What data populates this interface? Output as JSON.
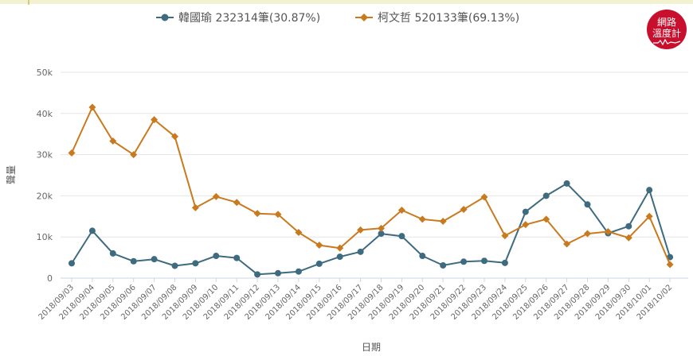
{
  "legend": [
    {
      "name": "韓國瑜 232314筆(30.87%)",
      "color": "#3e6b80",
      "marker": "circle"
    },
    {
      "name": "柯文哲 520133筆(69.13%)",
      "color": "#c97a1e",
      "marker": "diamond"
    }
  ],
  "brand": {
    "line1": "網路",
    "line2": "溫度計",
    "color": "#c8102e"
  },
  "chart_data": {
    "type": "line",
    "title": "",
    "xlabel": "日期",
    "ylabel": "聲量",
    "ylim": [
      0,
      50000
    ],
    "yticks": [
      0,
      10000,
      20000,
      30000,
      40000,
      50000
    ],
    "ytick_labels": [
      "0",
      "10k",
      "20k",
      "30k",
      "40k",
      "50k"
    ],
    "grid": "horizontal",
    "legend_position": "top-center",
    "categories": [
      "2018/09/03",
      "2018/09/04",
      "2018/09/05",
      "2018/09/06",
      "2018/09/07",
      "2018/09/08",
      "2018/09/09",
      "2018/09/10",
      "2018/09/11",
      "2018/09/12",
      "2018/09/13",
      "2018/09/14",
      "2018/09/15",
      "2018/09/16",
      "2018/09/17",
      "2018/09/18",
      "2018/09/19",
      "2018/09/20",
      "2018/09/21",
      "2018/09/22",
      "2018/09/23",
      "2018/09/24",
      "2018/09/25",
      "2018/09/26",
      "2018/09/27",
      "2018/09/28",
      "2018/09/29",
      "2018/09/30",
      "2018/10/01",
      "2018/10/02"
    ],
    "series": [
      {
        "name": "韓國瑜 232314筆(30.87%)",
        "color": "#3e6b80",
        "marker": "circle",
        "values": [
          3600,
          11500,
          6000,
          4100,
          4600,
          3000,
          3600,
          5400,
          4900,
          900,
          1200,
          1600,
          3500,
          5200,
          6400,
          10800,
          10200,
          5400,
          3100,
          4000,
          4200,
          3700,
          16100,
          20000,
          23000,
          17900,
          10900,
          12600,
          21400,
          5100
        ]
      },
      {
        "name": "柯文哲 520133筆(69.13%)",
        "color": "#c97a1e",
        "marker": "diamond",
        "values": [
          30400,
          41500,
          33300,
          30000,
          38500,
          34400,
          17100,
          19800,
          18400,
          15700,
          15500,
          11100,
          8000,
          7300,
          11700,
          12100,
          16500,
          14300,
          13800,
          16700,
          19700,
          10300,
          13000,
          14300,
          8300,
          10800,
          11300,
          9800,
          15000,
          3300
        ]
      }
    ]
  }
}
